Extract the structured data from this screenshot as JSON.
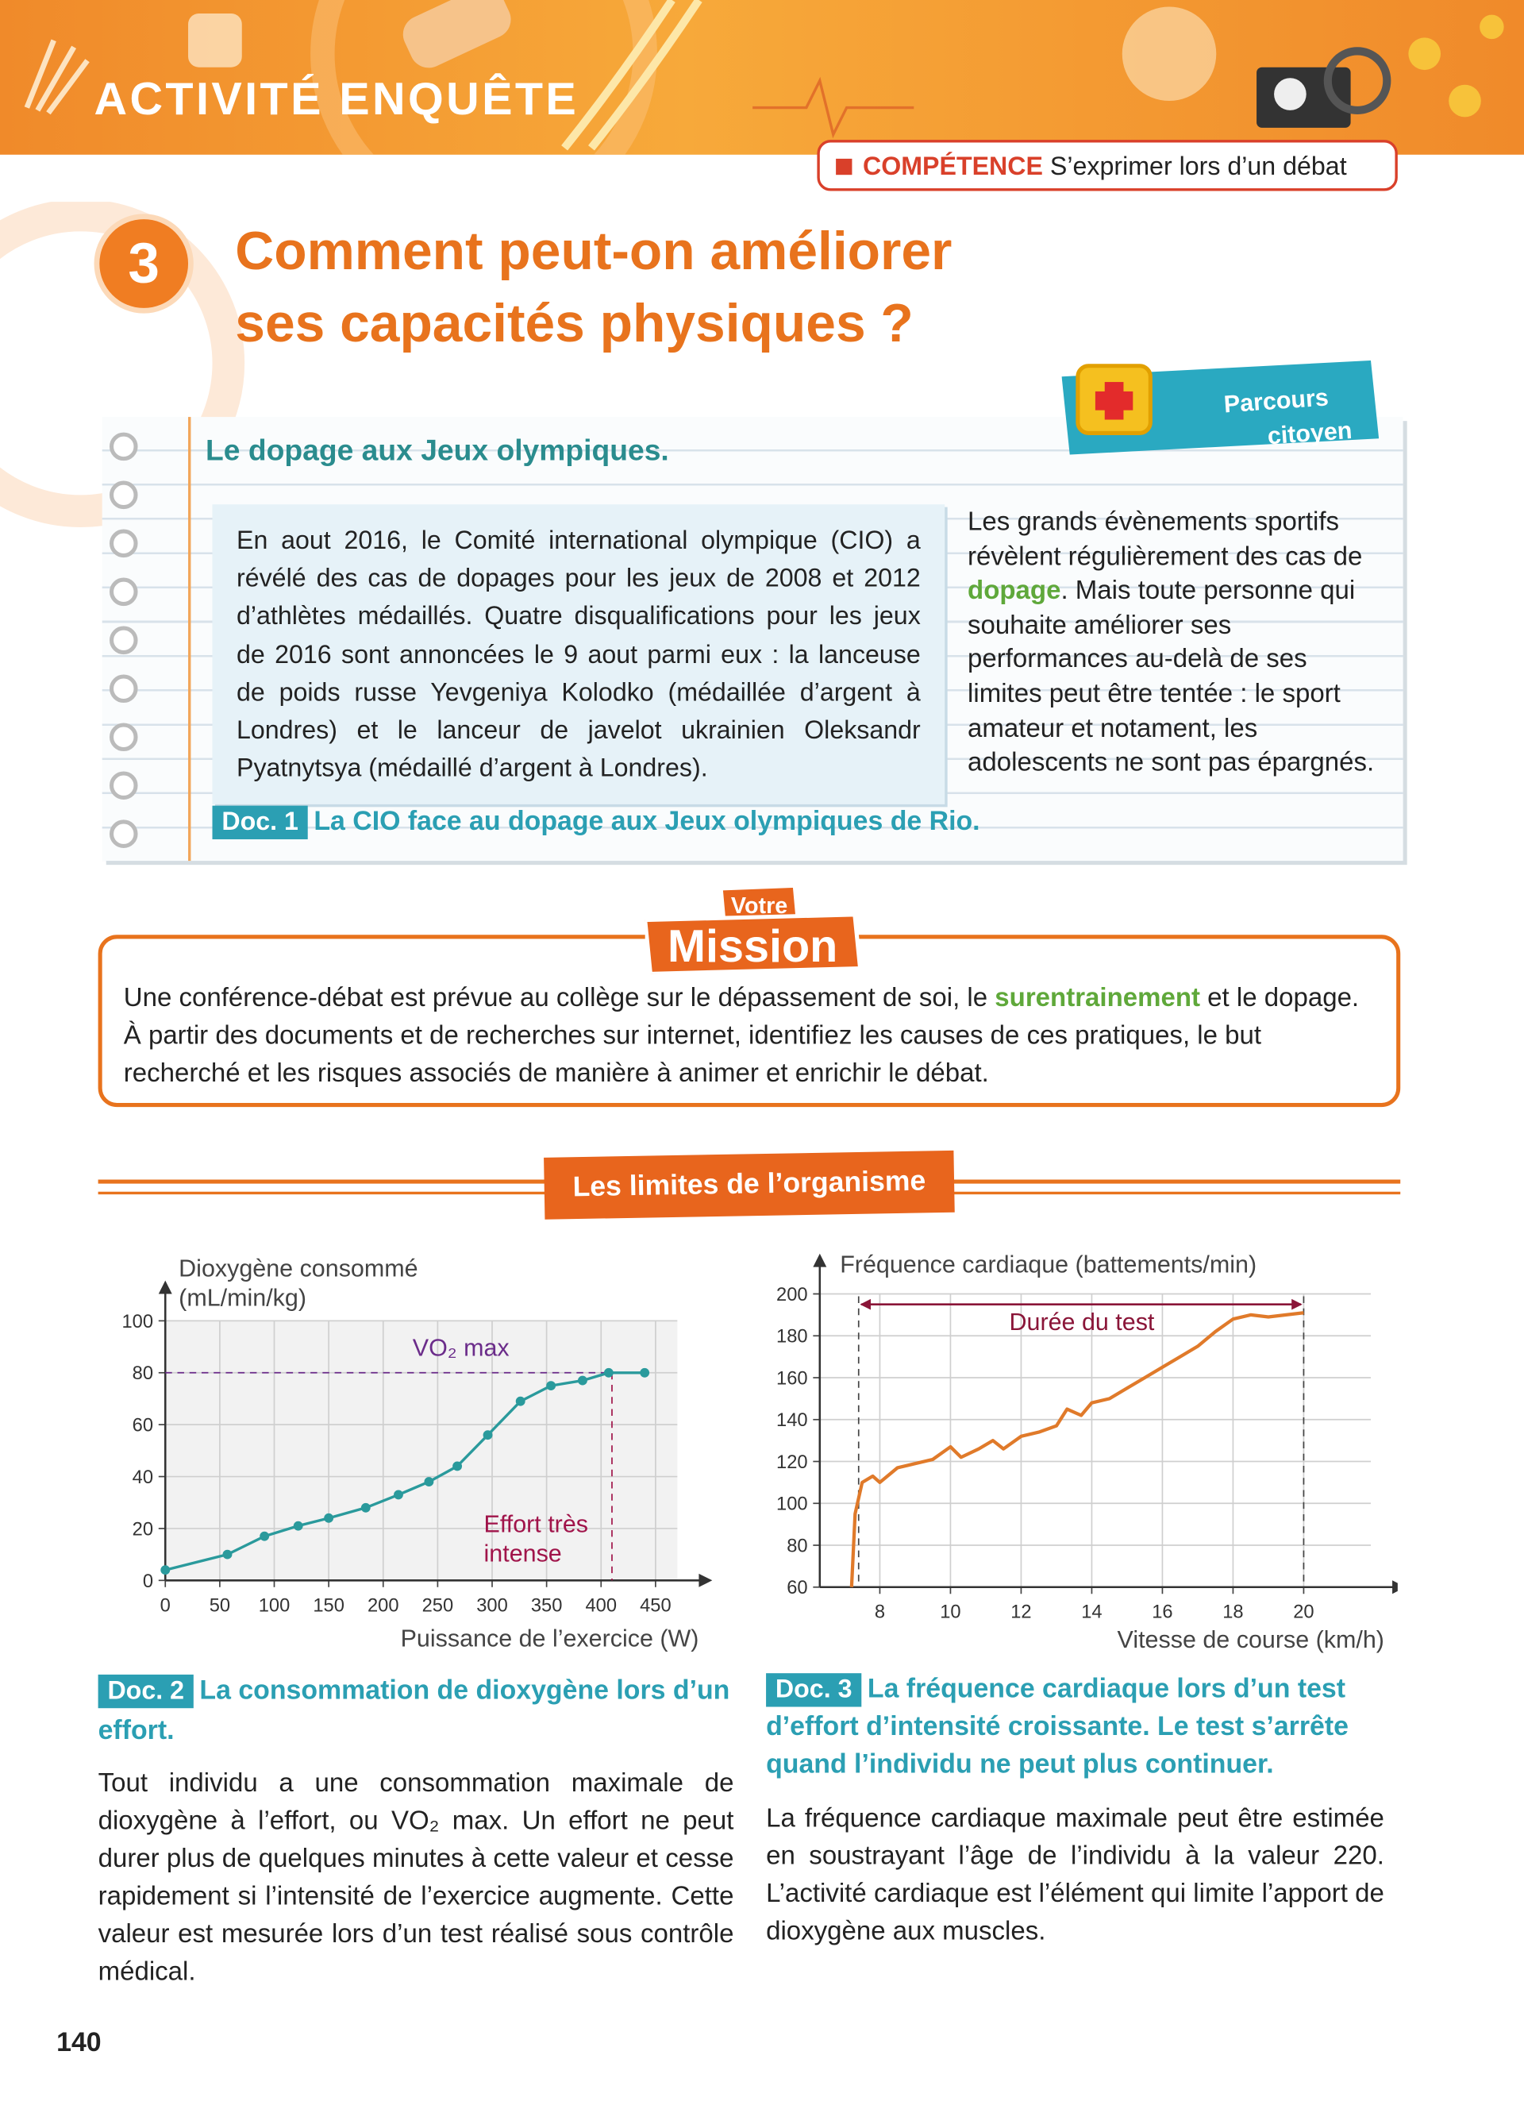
{
  "header": {
    "banner": "ACTIVITÉ ENQUÊTE",
    "competence_label": "COMPÉTENCE",
    "competence_text": "S’exprimer lors d’un débat",
    "number": "3",
    "title": [
      "Comment peut-on améliorer",
      "ses capacités physiques ?"
    ],
    "badge": [
      "Parcours",
      "citoyen"
    ]
  },
  "doc1": {
    "heading": "Le dopage aux Jeux olympiques.",
    "box_text": "En aout 2016, le Comité international olympique (CIO) a révélé des cas de dopages pour les jeux de 2008 et 2012 d’athlètes médaillés. Quatre disqualifications pour les jeux de 2016 sont annoncées le 9 aout parmi eux : la lanceuse de poids russe Yevgeniya Kolodko (médaillée d’argent à Londres) et le lanceur de javelot ukrainien Oleksandr Pyatnytsya (médaillé d’argent à Londres).",
    "side_text": [
      "Les grands évènements sportifs révèlent régulièrement des cas de ",
      "dopage",
      ". Mais toute personne qui souhaite améliorer ses performances au-delà de ses limites peut être tentée : le sport amateur et notament, les adolescents ne sont pas épargnés."
    ],
    "label": "Doc. 1",
    "caption": "La CIO face au dopage aux Jeux olympiques de Rio."
  },
  "mission": {
    "badge": [
      "Votre",
      "Mission"
    ],
    "text": [
      "Une conférence-débat est prévue au collège sur le dépassement de soi, le ",
      "surentrainement",
      " et le dopage. À partir des documents et de recherches sur internet, identifiez les causes de ces pratiques, le but recherché et les risques associés de manière à animer et enrichir le débat."
    ]
  },
  "section_title": "Les limites de l’organisme",
  "doc2": {
    "label": "Doc. 2",
    "caption": "La consommation de dioxygène lors d’un effort.",
    "text": "Tout individu a une consommation maximale de dioxygène à l’effort, ou VO₂ max. Un effort ne peut durer plus de quelques minutes à cette valeur et cesse rapidement si l’intensité de l’exercice augmente. Cette valeur est mesurée lors d’un test réalisé sous contrôle médical."
  },
  "doc3": {
    "label": "Doc. 3",
    "caption": "La fréquence cardiaque lors d’un test d’effort d’intensité croissante. Le test s’arrête quand l’individu ne peut plus continuer.",
    "text": "La fréquence cardiaque maximale peut être estimée en soustrayant l’âge de l’individu à la valeur 220. L’activité cardiaque est l’élément qui limite l’apport de dioxygène aux muscles."
  },
  "page_number": "140",
  "chart_data": [
    {
      "type": "line",
      "markers": true,
      "y_label": [
        "Dioxygène consommé",
        "(mL/min/kg)"
      ],
      "x_label": "Puissance de l’exercice (W)",
      "x": [
        0,
        57,
        91,
        122,
        150,
        184,
        214,
        242,
        268,
        296,
        326,
        354,
        383,
        407,
        440
      ],
      "series": [
        {
          "color": "#2a9a9c",
          "values": [
            4,
            10,
            17,
            21,
            24,
            28,
            33,
            38,
            44,
            56,
            69,
            75,
            77,
            80,
            80
          ]
        }
      ],
      "xlim": [
        0,
        470
      ],
      "ylim": [
        0,
        100
      ],
      "xticks": [
        0,
        50,
        100,
        150,
        200,
        250,
        300,
        350,
        400,
        450
      ],
      "yticks": [
        0,
        20,
        40,
        60,
        80,
        100
      ],
      "grid": true,
      "ref_lines": {
        "x": 410,
        "y": 80
      },
      "annotations": [
        "VO₂ max",
        [
          "Effort très",
          "intense"
        ]
      ]
    },
    {
      "type": "line",
      "markers": false,
      "y_label": [
        "Fréquence cardiaque (battements/min)"
      ],
      "x_label": "Vitesse de course (km/h)",
      "x": [
        7.2,
        7.3,
        7.5,
        7.8,
        8,
        8.5,
        9,
        9.5,
        10,
        10.3,
        10.8,
        11.2,
        11.5,
        12,
        12.5,
        13,
        13.3,
        13.7,
        14,
        14.5,
        15,
        15.5,
        16,
        16.5,
        17,
        17.5,
        18,
        18.5,
        19,
        19.5,
        20
      ],
      "series": [
        {
          "color": "#e07a2a",
          "values": [
            60,
            95,
            110,
            113,
            110,
            117,
            119,
            121,
            127,
            122,
            126,
            130,
            126,
            132,
            134,
            137,
            145,
            142,
            148,
            150,
            155,
            160,
            165,
            170,
            175,
            182,
            188,
            190,
            189,
            190,
            191
          ]
        }
      ],
      "xlim": [
        6.3,
        21.9
      ],
      "ylim": [
        60,
        200
      ],
      "xticks": [
        8,
        10,
        12,
        14,
        16,
        18,
        20
      ],
      "yticks": [
        60,
        80,
        100,
        120,
        140,
        160,
        180,
        200
      ],
      "grid": true,
      "test_span": {
        "x": [
          7.4,
          20
        ],
        "y": 195
      },
      "annotations": [
        "Durée du test"
      ]
    }
  ]
}
